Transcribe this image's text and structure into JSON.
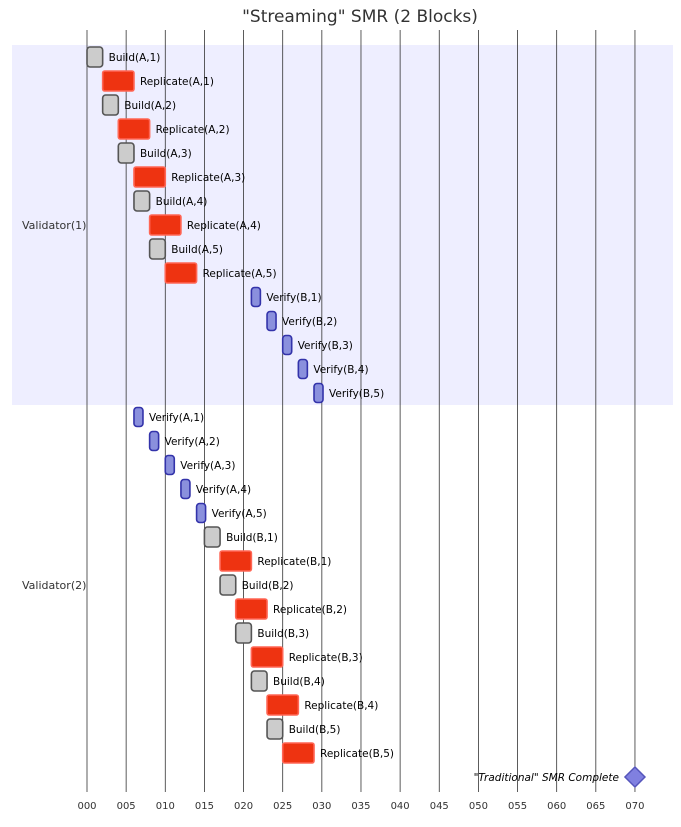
{
  "chart_data": {
    "type": "gantt",
    "title": "\"Streaming\" SMR (2 Blocks)",
    "xlim": [
      0,
      70
    ],
    "x_ticks": [
      "000",
      "005",
      "010",
      "015",
      "020",
      "025",
      "030",
      "035",
      "040",
      "045",
      "050",
      "055",
      "060",
      "065",
      "070"
    ],
    "sections": [
      {
        "name": "Validator(1)",
        "tasks": [
          {
            "label": "Build(A,1)",
            "kind": "build",
            "start": 0,
            "end": 2
          },
          {
            "label": "Replicate(A,1)",
            "kind": "replicate",
            "start": 2,
            "end": 6
          },
          {
            "label": "Build(A,2)",
            "kind": "build",
            "start": 2,
            "end": 4
          },
          {
            "label": "Replicate(A,2)",
            "kind": "replicate",
            "start": 4,
            "end": 8
          },
          {
            "label": "Build(A,3)",
            "kind": "build",
            "start": 4,
            "end": 6
          },
          {
            "label": "Replicate(A,3)",
            "kind": "replicate",
            "start": 6,
            "end": 10
          },
          {
            "label": "Build(A,4)",
            "kind": "build",
            "start": 6,
            "end": 8
          },
          {
            "label": "Replicate(A,4)",
            "kind": "replicate",
            "start": 8,
            "end": 12
          },
          {
            "label": "Build(A,5)",
            "kind": "build",
            "start": 8,
            "end": 10
          },
          {
            "label": "Replicate(A,5)",
            "kind": "replicate",
            "start": 10,
            "end": 14
          },
          {
            "label": "Verify(B,1)",
            "kind": "verify",
            "start": 21,
            "end": 22
          },
          {
            "label": "Verify(B,2)",
            "kind": "verify",
            "start": 23,
            "end": 24
          },
          {
            "label": "Verify(B,3)",
            "kind": "verify",
            "start": 25,
            "end": 26
          },
          {
            "label": "Verify(B,4)",
            "kind": "verify",
            "start": 27,
            "end": 28
          },
          {
            "label": "Verify(B,5)",
            "kind": "verify",
            "start": 29,
            "end": 30
          }
        ]
      },
      {
        "name": "Validator(2)",
        "tasks": [
          {
            "label": "Verify(A,1)",
            "kind": "verify",
            "start": 6,
            "end": 7
          },
          {
            "label": "Verify(A,2)",
            "kind": "verify",
            "start": 8,
            "end": 9
          },
          {
            "label": "Verify(A,3)",
            "kind": "verify",
            "start": 10,
            "end": 11
          },
          {
            "label": "Verify(A,4)",
            "kind": "verify",
            "start": 12,
            "end": 13
          },
          {
            "label": "Verify(A,5)",
            "kind": "verify",
            "start": 14,
            "end": 15
          },
          {
            "label": "Build(B,1)",
            "kind": "build",
            "start": 15,
            "end": 17
          },
          {
            "label": "Replicate(B,1)",
            "kind": "replicate",
            "start": 17,
            "end": 21
          },
          {
            "label": "Build(B,2)",
            "kind": "build",
            "start": 17,
            "end": 19
          },
          {
            "label": "Replicate(B,2)",
            "kind": "replicate",
            "start": 19,
            "end": 23
          },
          {
            "label": "Build(B,3)",
            "kind": "build",
            "start": 19,
            "end": 21
          },
          {
            "label": "Replicate(B,3)",
            "kind": "replicate",
            "start": 21,
            "end": 25
          },
          {
            "label": "Build(B,4)",
            "kind": "build",
            "start": 21,
            "end": 23
          },
          {
            "label": "Replicate(B,4)",
            "kind": "replicate",
            "start": 23,
            "end": 27
          },
          {
            "label": "Build(B,5)",
            "kind": "build",
            "start": 23,
            "end": 25
          },
          {
            "label": "Replicate(B,5)",
            "kind": "replicate",
            "start": 25,
            "end": 29
          }
        ]
      }
    ],
    "milestone": {
      "label": "\"Traditional\" SMR Complete",
      "at": 70
    },
    "colors": {
      "section1_bg": "#eeeeff",
      "grid": "#333333",
      "build_fill": "#cccccc",
      "build_stroke": "#555555",
      "replicate_fill": "#ee3311",
      "replicate_stroke": "#ff6655",
      "verify_fill": "#8a90dd",
      "verify_stroke": "#3333aa",
      "milestone_fill": "#8080e0",
      "milestone_stroke": "#5555bb",
      "text": "#000000",
      "title": "#333333"
    },
    "grid": true
  }
}
